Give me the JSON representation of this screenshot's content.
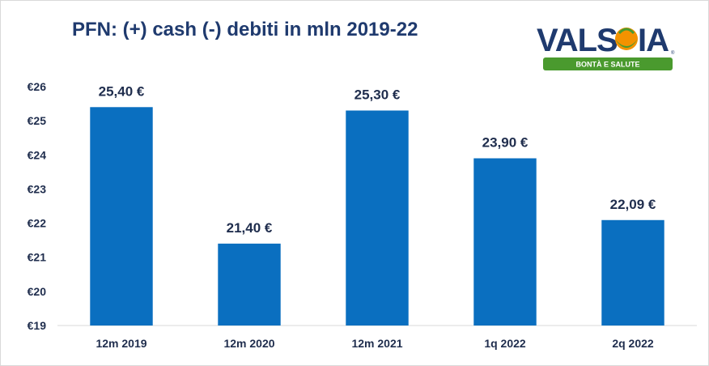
{
  "chart_data": {
    "type": "bar",
    "title": "PFN: (+) cash (-) debiti in mln 2019-22",
    "categories": [
      "12m 2019",
      "12m 2020",
      "12m 2021",
      "1q 2022",
      "2q 2022"
    ],
    "values": [
      25.4,
      21.4,
      25.3,
      23.9,
      22.09
    ],
    "data_labels": [
      "25,40 €",
      "21,40 €",
      "25,30 €",
      "23,90 €",
      "22,09 €"
    ],
    "ylim": [
      19,
      26
    ],
    "yticks": [
      19,
      20,
      21,
      22,
      23,
      24,
      25,
      26
    ],
    "ytick_labels": [
      "€19",
      "€20",
      "€21",
      "€22",
      "€23",
      "€24",
      "€25",
      "€26"
    ],
    "xlabel": "",
    "ylabel": "",
    "grid": false,
    "legend": "none",
    "bar_color": "#0a6fc0"
  },
  "logo": {
    "brand": "VALSOIA",
    "tagline": "BONTÀ E SALUTE"
  },
  "colors": {
    "title": "#1f3a6e",
    "text": "#1f2d4d",
    "logo_blue": "#1f3a6e",
    "logo_green": "#4a9a2e",
    "logo_orange": "#f39200"
  }
}
